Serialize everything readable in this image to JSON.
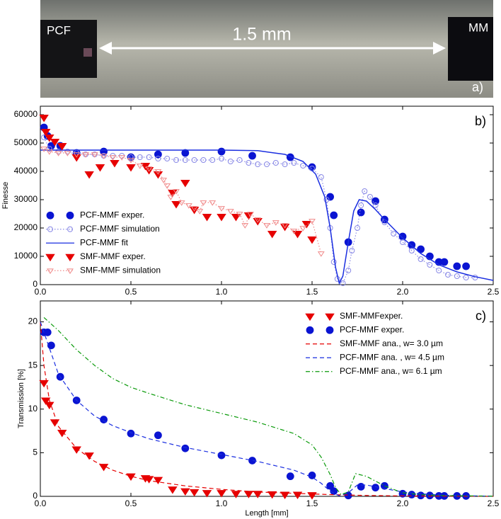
{
  "photo": {
    "left_label": "PCF",
    "right_label": "MM",
    "scale_label": "1.5 mm",
    "panel_label": "a)"
  },
  "chart_data": [
    {
      "type": "line",
      "annotation": "b)",
      "ylabel": "Finesse",
      "legend": "lower left",
      "xlim": [
        0,
        2.5
      ],
      "ylim": [
        0,
        63000
      ],
      "xticks": [
        {
          "value": 0,
          "label": "0.0"
        },
        0.5,
        {
          "value": 1,
          "label": "1.0"
        },
        1.5,
        {
          "value": 2,
          "label": "2.0"
        },
        2.5
      ],
      "yticks": [
        0,
        10000,
        20000,
        30000,
        40000,
        50000,
        60000
      ],
      "series": [
        {
          "name": "PCF-MMF exper.",
          "color": "#0a14d2",
          "marker": "circle",
          "linestyle": "none",
          "x": [
            0.02,
            0.04,
            0.06,
            0.11,
            0.2,
            0.35,
            0.5,
            0.65,
            0.8,
            1.0,
            1.17,
            1.38,
            1.5,
            1.6,
            1.62,
            1.7,
            1.77,
            1.85,
            1.9,
            2.0,
            2.05,
            2.1,
            2.15,
            2.2,
            2.23,
            2.3,
            2.35
          ],
          "values": [
            55500,
            52500,
            49000,
            49000,
            46500,
            47000,
            45000,
            46000,
            46500,
            47000,
            45500,
            45000,
            41500,
            31000,
            24500,
            15000,
            25500,
            29500,
            23000,
            17000,
            14000,
            12500,
            10000,
            8000,
            8000,
            6500,
            6500
          ]
        },
        {
          "name": "PCF-MMF simulation",
          "color": "#8a8ae6",
          "marker": "circle-open",
          "linestyle": "dotted",
          "x": [
            0.02,
            0.05,
            0.1,
            0.15,
            0.2,
            0.25,
            0.3,
            0.35,
            0.4,
            0.45,
            0.5,
            0.55,
            0.6,
            0.65,
            0.7,
            0.75,
            0.8,
            0.85,
            0.9,
            0.95,
            1.0,
            1.05,
            1.1,
            1.15,
            1.2,
            1.25,
            1.3,
            1.35,
            1.4,
            1.45,
            1.5,
            1.55,
            1.58,
            1.6,
            1.62,
            1.64,
            1.67,
            1.7,
            1.72,
            1.75,
            1.77,
            1.79,
            1.82,
            1.85,
            1.9,
            1.95,
            2.0,
            2.05,
            2.1,
            2.15,
            2.2,
            2.25,
            2.3,
            2.35,
            2.4
          ],
          "values": [
            52000,
            48000,
            47000,
            47000,
            46500,
            46000,
            46000,
            45500,
            45500,
            45500,
            45000,
            45000,
            45000,
            44500,
            44500,
            44000,
            44000,
            44000,
            44000,
            44000,
            44500,
            43500,
            44000,
            43000,
            42500,
            42500,
            43000,
            42500,
            43000,
            42000,
            41000,
            38000,
            30000,
            20000,
            8000,
            2000,
            500,
            5000,
            12000,
            20000,
            28000,
            33000,
            31000,
            28000,
            22000,
            18000,
            15000,
            12000,
            9000,
            7000,
            5000,
            3500,
            3000,
            2500,
            2500
          ]
        },
        {
          "name": "PCF-MMF fit",
          "color": "#1a2ee0",
          "marker": "none",
          "linestyle": "solid",
          "x": [
            0,
            0.5,
            1.0,
            1.2,
            1.35,
            1.45,
            1.52,
            1.57,
            1.6,
            1.63,
            1.65,
            1.67,
            1.7,
            1.73,
            1.76,
            1.8,
            1.85,
            1.9,
            2.0,
            2.1,
            2.2,
            2.3,
            2.4,
            2.5
          ],
          "values": [
            47500,
            47500,
            47500,
            47300,
            46000,
            43500,
            39000,
            31000,
            20000,
            6000,
            500,
            3000,
            15000,
            26000,
            30000,
            29500,
            26500,
            23000,
            16500,
            11000,
            7000,
            4500,
            2800,
            1500
          ]
        },
        {
          "name": "SMF-MMF exper.",
          "color": "#e60000",
          "marker": "triangle-down",
          "linestyle": "none",
          "x": [
            0.02,
            0.03,
            0.05,
            0.08,
            0.12,
            0.2,
            0.27,
            0.33,
            0.41,
            0.5,
            0.58,
            0.6,
            0.65,
            0.73,
            0.75,
            0.8,
            0.85,
            0.92,
            1.0,
            1.08,
            1.15,
            1.2,
            1.28,
            1.35,
            1.42,
            1.47,
            1.5
          ],
          "values": [
            59000,
            54000,
            52000,
            50500,
            49000,
            45000,
            39000,
            41500,
            43000,
            41500,
            42000,
            40500,
            39000,
            32500,
            28500,
            36000,
            26500,
            24000,
            24000,
            24000,
            24500,
            22500,
            18000,
            20500,
            18000,
            21500,
            16000
          ]
        },
        {
          "name": "SMF-MMF simulation",
          "color": "#f08a8a",
          "marker": "triangle-down-open",
          "linestyle": "dotted",
          "x": [
            0.02,
            0.05,
            0.1,
            0.15,
            0.2,
            0.25,
            0.3,
            0.35,
            0.4,
            0.45,
            0.5,
            0.55,
            0.6,
            0.65,
            0.68,
            0.7,
            0.72,
            0.75,
            0.78,
            0.82,
            0.85,
            0.88,
            0.9,
            0.95,
            1.0,
            1.05,
            1.1,
            1.13,
            1.16,
            1.2,
            1.25,
            1.3,
            1.35,
            1.4,
            1.45,
            1.5,
            1.55
          ],
          "values": [
            48000,
            47000,
            46500,
            46500,
            46000,
            46000,
            46000,
            45500,
            45000,
            45000,
            44000,
            42000,
            41000,
            40000,
            37000,
            35000,
            31000,
            33000,
            29000,
            28000,
            27000,
            26000,
            29000,
            29000,
            27000,
            26000,
            25000,
            21000,
            25000,
            23000,
            21000,
            22000,
            21000,
            19000,
            20000,
            22500,
            11000
          ]
        }
      ]
    },
    {
      "type": "line",
      "annotation": "c)",
      "xlabel": "Length [mm]",
      "ylabel": "Transmission [%]",
      "legend": "upper right",
      "xlim": [
        0,
        2.5
      ],
      "ylim": [
        0,
        22.4
      ],
      "xticks": [
        {
          "value": 0,
          "label": "0.0"
        },
        0.5,
        {
          "value": 1,
          "label": "1.0"
        },
        1.5,
        {
          "value": 2,
          "label": "2.0"
        },
        2.5
      ],
      "yticks": [
        0,
        5,
        10,
        15,
        20
      ],
      "series": [
        {
          "name": "SMF-MMFexper.",
          "color": "#e60000",
          "marker": "triangle-down",
          "linestyle": "none",
          "x": [
            0.02,
            0.03,
            0.05,
            0.08,
            0.12,
            0.2,
            0.27,
            0.35,
            0.5,
            0.58,
            0.6,
            0.65,
            0.73,
            0.8,
            0.85,
            0.92,
            1.0,
            1.08,
            1.15,
            1.2,
            1.28,
            1.35,
            1.42,
            1.5
          ],
          "values": [
            13,
            11,
            10.5,
            8.5,
            7.3,
            5.4,
            4.7,
            3.4,
            2.3,
            2.1,
            2.0,
            1.9,
            0.8,
            0.6,
            0.5,
            0.4,
            0.4,
            0.3,
            0.3,
            0.3,
            0.25,
            0.2,
            0.2,
            0.15
          ]
        },
        {
          "name": "PCF-MMF exper.",
          "color": "#0a14d2",
          "marker": "circle",
          "linestyle": "none",
          "x": [
            0.02,
            0.04,
            0.06,
            0.11,
            0.2,
            0.35,
            0.5,
            0.65,
            0.8,
            1.0,
            1.17,
            1.38,
            1.5,
            1.6,
            1.62,
            1.7,
            1.77,
            1.85,
            1.9,
            2.0,
            2.05,
            2.1,
            2.15,
            2.2,
            2.23,
            2.3,
            2.35
          ],
          "values": [
            18.8,
            18.8,
            17.3,
            13.7,
            11.0,
            8.8,
            7.2,
            7.0,
            5.5,
            4.7,
            4.1,
            2.3,
            2.4,
            1.2,
            0.6,
            0.1,
            1.1,
            1.0,
            1.2,
            0.3,
            0.2,
            0.1,
            0.1,
            0.05,
            0.05,
            0.05,
            0.05
          ]
        },
        {
          "name": "SMF-MMF ana., w= 3.0 µm",
          "color": "#e60000",
          "marker": "none",
          "linestyle": "dashed",
          "x": [
            0,
            0.02,
            0.05,
            0.1,
            0.2,
            0.3,
            0.4,
            0.5,
            0.6,
            0.8,
            1.0,
            1.2,
            1.4,
            1.6,
            1.8,
            2.0,
            2.2,
            2.5
          ],
          "values": [
            20,
            15,
            11,
            8,
            5.5,
            4,
            3,
            2.3,
            1.8,
            1.2,
            0.8,
            0.5,
            0.35,
            0.2,
            0.1,
            0.05,
            0.02,
            0
          ]
        },
        {
          "name": "PCF-MMF ana.  , w= 4.5 µm",
          "color": "#1a2ee0",
          "marker": "none",
          "linestyle": "dashed",
          "x": [
            0,
            0.05,
            0.1,
            0.2,
            0.3,
            0.4,
            0.5,
            0.6,
            0.8,
            1.0,
            1.2,
            1.4,
            1.5,
            1.55,
            1.6,
            1.65,
            1.7,
            1.75,
            1.8,
            1.9,
            2.0,
            2.1,
            2.2,
            2.3,
            2.5
          ],
          "values": [
            20,
            17,
            14,
            11,
            9.2,
            8.1,
            7.3,
            6.6,
            5.6,
            4.8,
            4.0,
            3.0,
            2.2,
            1.5,
            0.6,
            0.05,
            0.4,
            1.3,
            1.3,
            0.9,
            0.5,
            0.3,
            0.15,
            0.08,
            0.02
          ]
        },
        {
          "name": "PCF-MMF ana., w= 6.1 µm",
          "color": "#0a9a0a",
          "marker": "none",
          "linestyle": "dashdot",
          "x": [
            0.02,
            0.1,
            0.2,
            0.3,
            0.4,
            0.5,
            0.6,
            0.8,
            1.0,
            1.2,
            1.4,
            1.5,
            1.55,
            1.6,
            1.63,
            1.66,
            1.7,
            1.74,
            1.8,
            1.9,
            2.0,
            2.1,
            2.2,
            2.5
          ],
          "values": [
            20.5,
            19,
            16.8,
            15,
            13.5,
            12.5,
            11.8,
            10.5,
            9.5,
            8.5,
            7.2,
            5.9,
            4.5,
            2.5,
            1.0,
            0.2,
            0.5,
            2.6,
            2.3,
            1.2,
            0.4,
            0.2,
            0.1,
            0.02
          ]
        }
      ]
    }
  ]
}
